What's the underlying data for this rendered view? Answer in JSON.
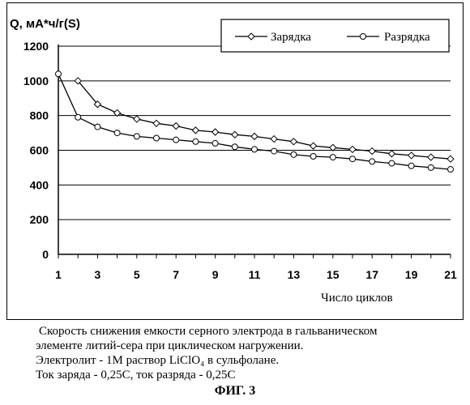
{
  "chart_data": {
    "type": "line",
    "ylabel": "Q, мА*ч/г(S)",
    "xlabel": "Число циклов",
    "ylim": [
      0,
      1200
    ],
    "yticks": [
      "0",
      "200",
      "400",
      "600",
      "800",
      "1000",
      "1200"
    ],
    "xlim": [
      1,
      21
    ],
    "xticks": [
      "1",
      "3",
      "5",
      "7",
      "9",
      "11",
      "13",
      "15",
      "17",
      "19",
      "21"
    ],
    "grid": "horizontal",
    "legend_position": "top-right",
    "series": [
      {
        "name": "Зарядка",
        "marker": "diamond",
        "x": [
          2,
          3,
          4,
          5,
          6,
          7,
          8,
          9,
          10,
          11,
          12,
          13,
          14,
          15,
          16,
          17,
          18,
          19,
          20,
          21
        ],
        "values": [
          1000,
          865,
          815,
          780,
          755,
          740,
          715,
          705,
          690,
          680,
          665,
          650,
          625,
          615,
          605,
          595,
          580,
          570,
          560,
          550
        ]
      },
      {
        "name": "Разрядка",
        "marker": "circle",
        "x": [
          1,
          2,
          3,
          4,
          5,
          6,
          7,
          8,
          9,
          10,
          11,
          12,
          13,
          14,
          15,
          16,
          17,
          18,
          19,
          20,
          21
        ],
        "values": [
          1040,
          790,
          735,
          700,
          680,
          670,
          660,
          650,
          640,
          620,
          605,
          595,
          575,
          565,
          560,
          550,
          535,
          525,
          510,
          500,
          490
        ]
      }
    ]
  },
  "caption": {
    "line1": "Скорость снижения емкости серного электрода  в гальваническом",
    "line2": "элементе литий-сера при циклическом нагружении.",
    "line3": "Электролит - 1М раствор LiClO₄ в сульфолане.",
    "line4": "Ток заряда - 0,25С, ток разряда - 0,25С"
  },
  "figure_label": "ФИГ. 3"
}
